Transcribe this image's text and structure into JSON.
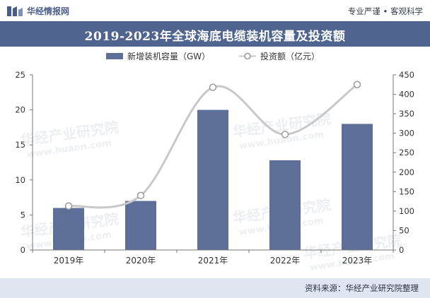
{
  "header": {
    "brand_name": "华经情报网",
    "slogan": "专业严谨 • 客观科学",
    "logo_icon": "huajing-logo-icon"
  },
  "title": "2019-2023年全球海底电缆装机容量及投资额",
  "footer": {
    "source": "资料来源：华经产业研究院整理"
  },
  "colors": {
    "bar": "#5d6f99",
    "line": "#c8c8c8",
    "title_bg": "#4f6590",
    "footer_bg": "#dfe6f2"
  },
  "watermarks": {
    "cn": "华经产业研究院",
    "url": "www.huaon.com"
  },
  "chart_data": {
    "type": "bar+line",
    "categories": [
      "2019年",
      "2020年",
      "2021年",
      "2022年",
      "2023年"
    ],
    "series": [
      {
        "name": "新增装机容量（GW）",
        "type": "bar",
        "axis": "left",
        "values": [
          6,
          7,
          20,
          12.8,
          18
        ]
      },
      {
        "name": "投资额（亿元）",
        "type": "line",
        "axis": "right",
        "values": [
          113,
          140,
          418,
          297,
          425
        ]
      }
    ],
    "y_left": {
      "min": 0,
      "max": 25,
      "ticks": [
        0,
        5,
        10,
        15,
        20,
        25
      ]
    },
    "y_right": {
      "min": 0,
      "max": 450,
      "ticks": [
        0,
        50,
        100,
        150,
        200,
        250,
        300,
        350,
        400,
        450
      ]
    },
    "legend_position": "top-center",
    "grid": false
  }
}
